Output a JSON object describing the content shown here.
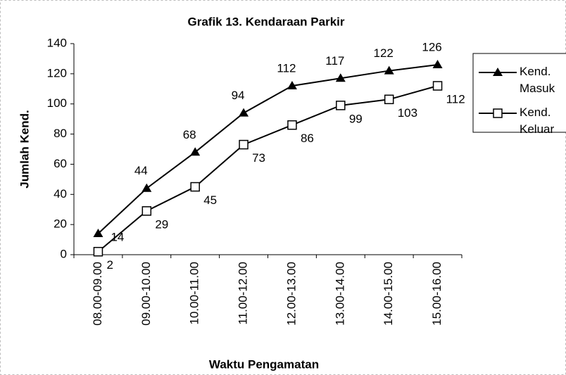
{
  "chart_data": {
    "type": "line",
    "title": "Grafik 13. Kendaraan Parkir",
    "x_label": "Waktu Pengamatan",
    "y_label": "Jumlah Kend.",
    "categories": [
      "08.00-09.00",
      "09.00-10.00",
      "10.00-11.00",
      "11.00-12.00",
      "12.00-13.00",
      "13.00-14.00",
      "14.00-15.00",
      "15.00-16.00"
    ],
    "series": [
      {
        "name": "Kend. Masuk",
        "color": "#000000",
        "marker": "triangle",
        "values": [
          14,
          44,
          68,
          94,
          112,
          117,
          122,
          126
        ]
      },
      {
        "name": "Kend. Keluar",
        "color": "#000000",
        "marker": "square",
        "values": [
          2,
          29,
          45,
          73,
          86,
          99,
          103,
          112
        ]
      }
    ],
    "ylim": [
      0,
      140
    ],
    "yticks": [
      0,
      20,
      40,
      60,
      80,
      100,
      120,
      140
    ],
    "grid": false,
    "legend": "right"
  }
}
